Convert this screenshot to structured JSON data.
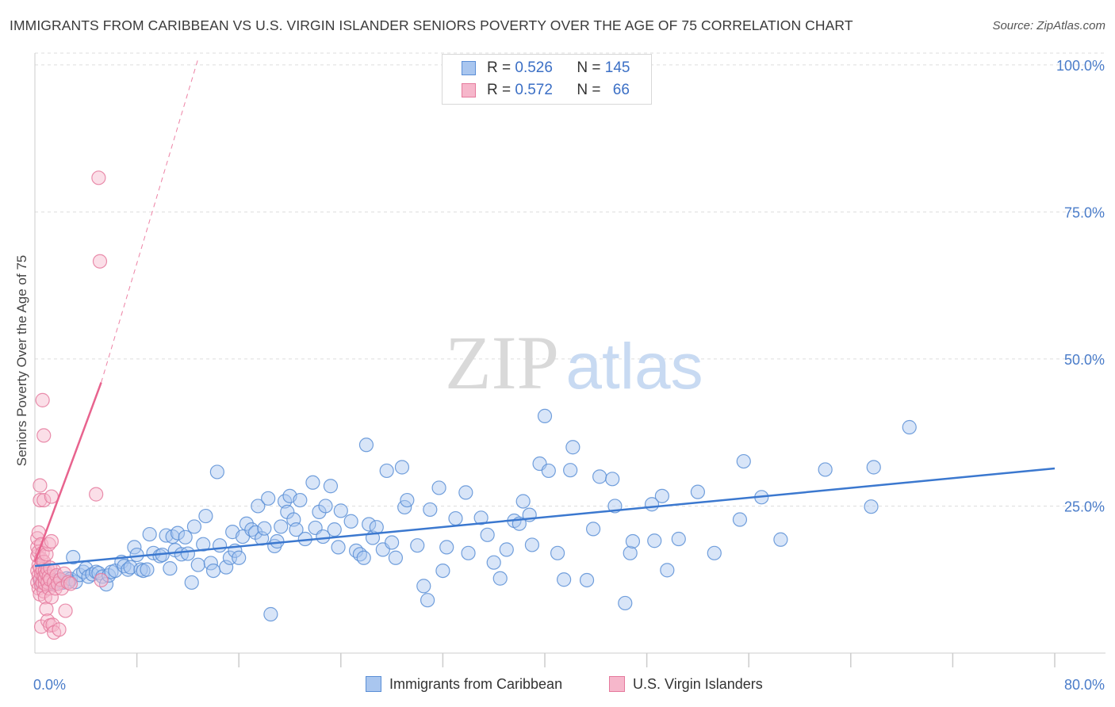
{
  "header": {
    "title": "IMMIGRANTS FROM CARIBBEAN VS U.S. VIRGIN ISLANDER SENIORS POVERTY OVER THE AGE OF 75 CORRELATION CHART",
    "source": "Source: ZipAtlas.com"
  },
  "watermark": {
    "zip": "ZIP",
    "atlas": "atlas"
  },
  "legend": {
    "rows": [
      {
        "r_label": "R =",
        "r_value": "0.526",
        "n_label": "N =",
        "n_value": "145"
      },
      {
        "r_label": "R =",
        "r_value": "0.572",
        "n_label": "N =",
        "n_value": "66"
      }
    ]
  },
  "colors": {
    "blue_fill": "#a9c6ef",
    "blue_stroke": "#5b8fd6",
    "blue_line": "#3b78cf",
    "pink_fill": "#f6b7cb",
    "pink_stroke": "#e57a9d",
    "pink_line": "#e8638e",
    "grid": "#dddddd",
    "tick_label": "#4a7cc9"
  },
  "chart_data": {
    "type": "scatter",
    "ylabel": "Seniors Poverty Over the Age of 75",
    "xlim": [
      0,
      80
    ],
    "ylim": [
      0,
      102
    ],
    "x_tick_labels": [
      {
        "value": 0,
        "label": "0.0%"
      },
      {
        "value": 80,
        "label": "80.0%"
      }
    ],
    "y_ticks": [
      {
        "value": 25,
        "label": "25.0%"
      },
      {
        "value": 50,
        "label": "50.0%"
      },
      {
        "value": 75,
        "label": "75.0%"
      },
      {
        "value": 100,
        "label": "100.0%"
      }
    ],
    "x_minor_ticks": [
      8,
      16,
      24,
      32,
      40,
      48,
      56,
      64,
      72,
      80
    ],
    "grid": true,
    "series": [
      {
        "name": "Immigrants from Caribbean",
        "color": "#a9c6ef",
        "trend": {
          "x": [
            0,
            80
          ],
          "y": [
            14.8,
            31.4
          ],
          "style": "solid"
        },
        "points": [
          [
            0.4,
            12.5
          ],
          [
            0.5,
            12.0
          ],
          [
            0.6,
            11.5
          ],
          [
            0.7,
            13.0
          ],
          [
            0.8,
            12.2
          ],
          [
            0.9,
            11.8
          ],
          [
            1.0,
            12.6
          ],
          [
            1.1,
            11.9
          ],
          [
            1.2,
            12.8
          ],
          [
            1.3,
            12.1
          ],
          [
            1.4,
            12.4
          ],
          [
            1.5,
            11.7
          ],
          [
            1.6,
            12.9
          ],
          [
            1.8,
            12.3
          ],
          [
            2.0,
            12.5
          ],
          [
            2.2,
            12.0
          ],
          [
            2.5,
            12.7
          ],
          [
            2.7,
            12.2
          ],
          [
            2.8,
            12.6
          ],
          [
            3.0,
            16.3
          ],
          [
            3.2,
            12.1
          ],
          [
            3.5,
            13.3
          ],
          [
            3.8,
            13.8
          ],
          [
            4.0,
            14.4
          ],
          [
            4.2,
            13.0
          ],
          [
            4.5,
            13.4
          ],
          [
            4.8,
            13.8
          ],
          [
            5.0,
            13.6
          ],
          [
            5.3,
            13.0
          ],
          [
            5.6,
            11.7
          ],
          [
            5.8,
            13.2
          ],
          [
            6.0,
            13.8
          ],
          [
            6.3,
            14.0
          ],
          [
            6.8,
            15.5
          ],
          [
            7.0,
            14.8
          ],
          [
            7.3,
            14.2
          ],
          [
            7.5,
            14.6
          ],
          [
            7.8,
            18.0
          ],
          [
            8.0,
            16.7
          ],
          [
            8.3,
            14.2
          ],
          [
            8.5,
            14.0
          ],
          [
            8.8,
            14.2
          ],
          [
            9.0,
            20.2
          ],
          [
            9.3,
            17.0
          ],
          [
            9.8,
            16.5
          ],
          [
            10.0,
            16.7
          ],
          [
            10.3,
            20.0
          ],
          [
            10.6,
            14.4
          ],
          [
            10.8,
            19.8
          ],
          [
            11.0,
            17.5
          ],
          [
            11.2,
            20.4
          ],
          [
            11.5,
            16.8
          ],
          [
            11.8,
            19.7
          ],
          [
            12.0,
            16.9
          ],
          [
            12.3,
            12.0
          ],
          [
            12.5,
            21.5
          ],
          [
            12.8,
            15.0
          ],
          [
            13.2,
            18.5
          ],
          [
            13.4,
            23.3
          ],
          [
            13.8,
            15.3
          ],
          [
            14.0,
            14.0
          ],
          [
            14.3,
            30.8
          ],
          [
            14.5,
            18.3
          ],
          [
            15.0,
            14.6
          ],
          [
            15.3,
            16.2
          ],
          [
            15.5,
            20.6
          ],
          [
            15.7,
            17.4
          ],
          [
            16.0,
            16.2
          ],
          [
            16.3,
            19.8
          ],
          [
            16.6,
            22.0
          ],
          [
            17.0,
            21.0
          ],
          [
            17.3,
            20.5
          ],
          [
            17.5,
            25.0
          ],
          [
            17.8,
            19.5
          ],
          [
            18.0,
            21.2
          ],
          [
            18.3,
            26.3
          ],
          [
            18.5,
            6.6
          ],
          [
            18.8,
            18.2
          ],
          [
            19.0,
            19.0
          ],
          [
            19.3,
            21.5
          ],
          [
            19.6,
            25.8
          ],
          [
            19.8,
            24.0
          ],
          [
            20.0,
            26.7
          ],
          [
            20.3,
            22.7
          ],
          [
            20.5,
            21.0
          ],
          [
            20.8,
            26.0
          ],
          [
            21.2,
            19.4
          ],
          [
            21.8,
            29.0
          ],
          [
            22.0,
            21.3
          ],
          [
            22.3,
            24.0
          ],
          [
            22.6,
            19.8
          ],
          [
            22.8,
            25.0
          ],
          [
            23.2,
            28.4
          ],
          [
            23.5,
            21.0
          ],
          [
            23.8,
            18.0
          ],
          [
            24.0,
            24.2
          ],
          [
            24.8,
            22.4
          ],
          [
            25.2,
            17.4
          ],
          [
            25.5,
            16.8
          ],
          [
            25.8,
            16.2
          ],
          [
            26.0,
            35.4
          ],
          [
            26.2,
            21.9
          ],
          [
            26.5,
            19.6
          ],
          [
            26.8,
            21.4
          ],
          [
            27.3,
            17.6
          ],
          [
            27.6,
            31.0
          ],
          [
            28.0,
            18.8
          ],
          [
            28.3,
            16.2
          ],
          [
            28.8,
            31.6
          ],
          [
            29.0,
            24.8
          ],
          [
            29.2,
            26.0
          ],
          [
            30.0,
            18.3
          ],
          [
            30.5,
            11.4
          ],
          [
            30.8,
            9.0
          ],
          [
            31.0,
            24.4
          ],
          [
            31.7,
            28.1
          ],
          [
            32.0,
            14.0
          ],
          [
            32.3,
            18.0
          ],
          [
            33.0,
            22.9
          ],
          [
            33.8,
            27.3
          ],
          [
            34.0,
            17.0
          ],
          [
            35.0,
            23.0
          ],
          [
            35.5,
            20.1
          ],
          [
            36.0,
            15.4
          ],
          [
            36.5,
            12.7
          ],
          [
            37.0,
            17.6
          ],
          [
            37.6,
            22.5
          ],
          [
            38.0,
            22.0
          ],
          [
            38.3,
            25.8
          ],
          [
            38.8,
            23.5
          ],
          [
            39.0,
            18.4
          ],
          [
            39.6,
            32.2
          ],
          [
            40.0,
            40.3
          ],
          [
            40.3,
            31.0
          ],
          [
            41.0,
            17.0
          ],
          [
            41.5,
            12.5
          ],
          [
            42.0,
            31.1
          ],
          [
            42.2,
            35.0
          ],
          [
            43.3,
            12.4
          ],
          [
            43.8,
            21.1
          ],
          [
            44.3,
            30.0
          ],
          [
            45.3,
            29.6
          ],
          [
            45.5,
            25.0
          ],
          [
            46.3,
            8.5
          ],
          [
            46.7,
            17.0
          ],
          [
            46.9,
            19.0
          ],
          [
            48.4,
            25.3
          ],
          [
            48.6,
            19.1
          ],
          [
            49.2,
            26.7
          ],
          [
            49.6,
            14.1
          ],
          [
            50.5,
            19.4
          ],
          [
            52.0,
            27.4
          ],
          [
            53.3,
            17.0
          ],
          [
            55.3,
            22.7
          ],
          [
            55.6,
            32.6
          ],
          [
            57.0,
            26.5
          ],
          [
            58.5,
            19.3
          ],
          [
            62.0,
            31.2
          ],
          [
            65.6,
            24.9
          ],
          [
            65.8,
            31.6
          ],
          [
            68.6,
            38.4
          ]
        ]
      },
      {
        "name": "U.S. Virgin Islanders",
        "color": "#f6b7cb",
        "trend": {
          "x": [
            0,
            5.2
          ],
          "y": [
            15.5,
            46
          ],
          "style": "solid",
          "extension": {
            "x": [
              5.2,
              12.8
            ],
            "y": [
              46,
              101
            ]
          }
        },
        "points": [
          [
            0.2,
            12.0
          ],
          [
            0.2,
            14.0
          ],
          [
            0.2,
            16.5
          ],
          [
            0.2,
            18.0
          ],
          [
            0.2,
            19.5
          ],
          [
            0.3,
            11.0
          ],
          [
            0.3,
            13.2
          ],
          [
            0.3,
            15.0
          ],
          [
            0.3,
            17.2
          ],
          [
            0.3,
            20.5
          ],
          [
            0.4,
            10.0
          ],
          [
            0.4,
            12.5
          ],
          [
            0.4,
            14.5
          ],
          [
            0.4,
            26.0
          ],
          [
            0.4,
            28.5
          ],
          [
            0.5,
            11.5
          ],
          [
            0.5,
            13.5
          ],
          [
            0.5,
            16.0
          ],
          [
            0.5,
            18.5
          ],
          [
            0.5,
            4.5
          ],
          [
            0.6,
            12.0
          ],
          [
            0.6,
            14.2
          ],
          [
            0.6,
            17.0
          ],
          [
            0.6,
            43.0
          ],
          [
            0.7,
            10.5
          ],
          [
            0.7,
            13.0
          ],
          [
            0.7,
            15.5
          ],
          [
            0.7,
            26.0
          ],
          [
            0.7,
            37.0
          ],
          [
            0.8,
            11.8
          ],
          [
            0.8,
            12.7
          ],
          [
            0.8,
            14.0
          ],
          [
            0.8,
            9.5
          ],
          [
            0.9,
            7.5
          ],
          [
            0.9,
            13.5
          ],
          [
            0.9,
            16.8
          ],
          [
            1.0,
            12.0
          ],
          [
            1.0,
            14.2
          ],
          [
            1.0,
            5.5
          ],
          [
            1.1,
            11.0
          ],
          [
            1.1,
            13.0
          ],
          [
            1.1,
            18.5
          ],
          [
            1.2,
            12.5
          ],
          [
            1.2,
            14.5
          ],
          [
            1.2,
            4.7
          ],
          [
            1.3,
            9.5
          ],
          [
            1.3,
            26.6
          ],
          [
            1.3,
            19.0
          ],
          [
            1.4,
            4.8
          ],
          [
            1.5,
            12.0
          ],
          [
            1.5,
            14.0
          ],
          [
            1.5,
            3.5
          ],
          [
            1.6,
            11.0
          ],
          [
            1.7,
            13.2
          ],
          [
            1.8,
            11.8
          ],
          [
            1.9,
            4.0
          ],
          [
            2.0,
            12.5
          ],
          [
            2.1,
            11.0
          ],
          [
            2.3,
            13.5
          ],
          [
            2.4,
            7.2
          ],
          [
            2.6,
            12.0
          ],
          [
            2.8,
            11.8
          ],
          [
            4.8,
            27.0
          ],
          [
            5.0,
            80.8
          ],
          [
            5.1,
            66.6
          ],
          [
            5.2,
            12.4
          ]
        ]
      }
    ]
  },
  "bottom_legend": {
    "items": [
      {
        "label": "Immigrants from Caribbean"
      },
      {
        "label": "U.S. Virgin Islanders"
      }
    ]
  }
}
